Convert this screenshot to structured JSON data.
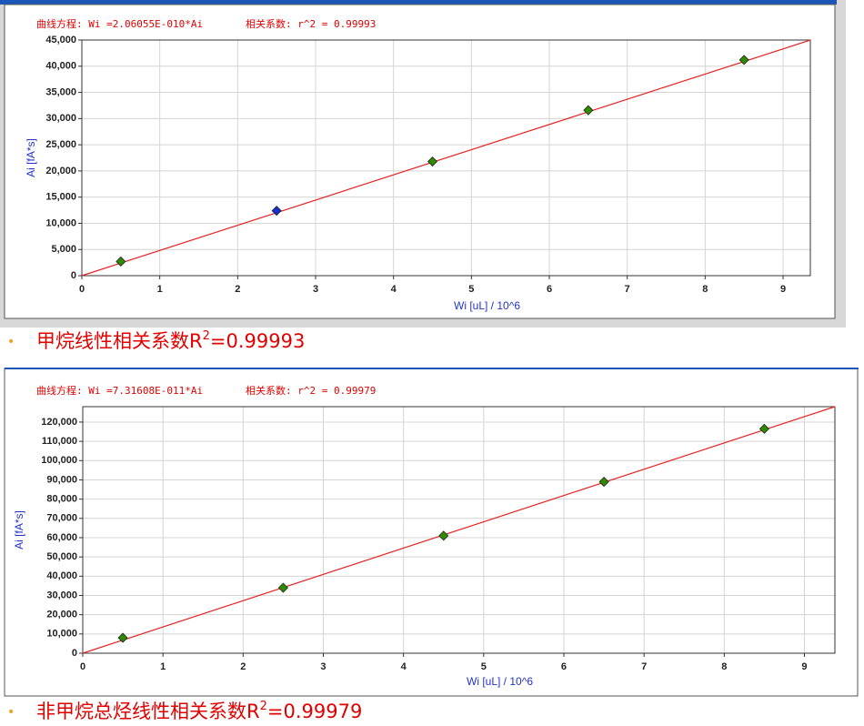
{
  "chart_data": [
    {
      "type": "scatter",
      "title": "曲线方程: Wi =2.06055E-010*Ai",
      "subtitle": "相关系数: r^2 = 0.99993",
      "x_label": "Wi [uL] / 10^6",
      "y_label": "Ai [fA*s]",
      "x": [
        0.5,
        2.5,
        4.5,
        6.5,
        8.5
      ],
      "values": [
        2700,
        12400,
        21800,
        31600,
        41200
      ],
      "colors": [
        "#2e8b00",
        "#1030d0",
        "#2e8b00",
        "#2e8b00",
        "#2e8b00"
      ],
      "fit_line": {
        "x": [
          0,
          9.35
        ],
        "values": [
          0,
          45000
        ],
        "color": "#e82020"
      },
      "xlim": [
        0,
        9.35
      ],
      "ylim": [
        0,
        45000
      ],
      "xticks": [
        0,
        1,
        2,
        3,
        4,
        5,
        6,
        7,
        8,
        9
      ],
      "yticks": [
        0,
        {
          "value": 5000,
          "label": "5,000"
        },
        {
          "value": 10000,
          "label": "10,000"
        },
        {
          "value": 15000,
          "label": "15,000"
        },
        {
          "value": 20000,
          "label": "20,000"
        },
        {
          "value": 25000,
          "label": "25,000"
        },
        {
          "value": 30000,
          "label": "30,000"
        },
        {
          "value": 35000,
          "label": "35,000"
        },
        {
          "value": 40000,
          "label": "40,000"
        },
        {
          "value": 45000,
          "label": "45,000"
        }
      ],
      "grid": true
    },
    {
      "type": "scatter",
      "title": "曲线方程: Wi =7.31608E-011*Ai",
      "subtitle": "相关系数: r^2 = 0.99979",
      "x_label": "Wi [uL] / 10^6",
      "y_label": "Ai [fA*s]",
      "x": [
        0.5,
        2.5,
        4.5,
        6.5,
        8.5
      ],
      "values": [
        8000,
        34000,
        61000,
        89000,
        116500
      ],
      "colors": [
        "#2e8b00",
        "#2e8b00",
        "#2e8b00",
        "#2e8b00",
        "#2e8b00"
      ],
      "fit_line": {
        "x": [
          0,
          9.38
        ],
        "values": [
          0,
          128000
        ],
        "color": "#e82020"
      },
      "xlim": [
        0,
        9.38
      ],
      "ylim": [
        0,
        128000
      ],
      "xticks": [
        0,
        1,
        2,
        3,
        4,
        5,
        6,
        7,
        8,
        9
      ],
      "yticks": [
        0,
        {
          "value": 10000,
          "label": "10,000"
        },
        {
          "value": 20000,
          "label": "20,000"
        },
        {
          "value": 30000,
          "label": "30,000"
        },
        {
          "value": 40000,
          "label": "40,000"
        },
        {
          "value": 50000,
          "label": "50,000"
        },
        {
          "value": 60000,
          "label": "60,000"
        },
        {
          "value": 70000,
          "label": "70,000"
        },
        {
          "value": 80000,
          "label": "80,000"
        },
        {
          "value": 90000,
          "label": "90,000"
        },
        {
          "value": 100000,
          "label": "100,000"
        },
        {
          "value": 110000,
          "label": "110,000"
        },
        {
          "value": 120000,
          "label": "120,000"
        }
      ],
      "grid": true
    }
  ],
  "captions": [
    {
      "text": "甲烷线性相关系数R",
      "sup": "2",
      "rest": "=0.99993"
    },
    {
      "text": "非甲烷总烃线性相关系数R",
      "sup": "2",
      "rest": "=0.99979"
    }
  ]
}
